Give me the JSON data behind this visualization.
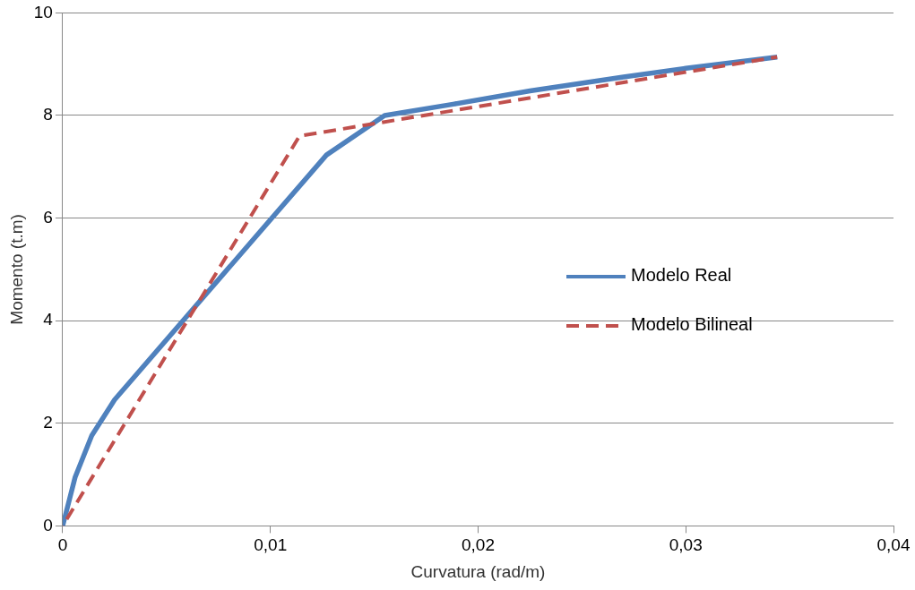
{
  "chart_data": {
    "type": "line",
    "xlabel": "Curvatura (rad/m)",
    "ylabel": "Momento (t.m)",
    "xlim": [
      0,
      0.04
    ],
    "xticks": [
      {
        "value": 0,
        "label": "0"
      },
      {
        "value": 0.01,
        "label": "0,01"
      },
      {
        "value": 0.02,
        "label": "0,02"
      },
      {
        "value": 0.03,
        "label": "0,03"
      },
      {
        "value": 0.04,
        "label": "0,04"
      }
    ],
    "ylim": [
      0,
      10
    ],
    "yticks": [
      0,
      2,
      4,
      6,
      8,
      10
    ],
    "grid": "y",
    "legend": "right",
    "marker": "none",
    "series": [
      {
        "name": "Modelo Real",
        "color": "#4f81bd",
        "line_style": "solid",
        "x": [
          0,
          0.0006,
          0.0014,
          0.0025,
          0.0127,
          0.0155,
          0.0188,
          0.0225,
          0.027,
          0.03,
          0.0344
        ],
        "values": [
          0,
          0.95,
          1.76,
          2.46,
          7.23,
          8.0,
          8.22,
          8.48,
          8.75,
          8.92,
          9.14
        ]
      },
      {
        "name": "Modelo Bilineal",
        "color": "#c0504d",
        "line_style": "dashed",
        "x": [
          0,
          0.0114,
          0.0344
        ],
        "values": [
          0,
          7.6,
          9.14
        ]
      }
    ]
  }
}
